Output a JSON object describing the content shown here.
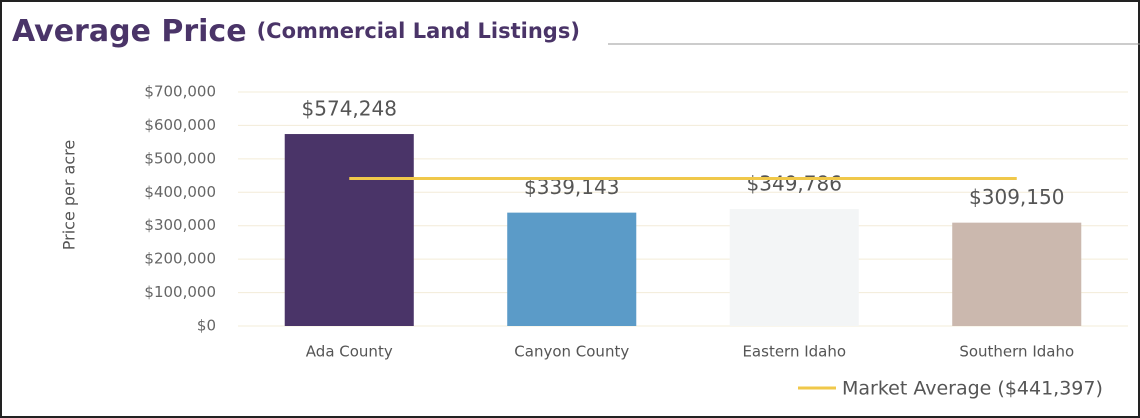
{
  "chart_data": {
    "type": "bar",
    "title": "Average Price",
    "subtitle": "(Commercial Land Listings)",
    "y_label": "Price per acre",
    "categories": [
      "Ada County",
      "Canyon County",
      "Eastern Idaho",
      "Southern Idaho"
    ],
    "values": [
      574248,
      339143,
      349786,
      309150
    ],
    "value_labels": [
      "$574,248",
      "$339,143",
      "$349,786",
      "$309,150"
    ],
    "colors": [
      "#4a3468",
      "#5b9bc8",
      "#f3f5f6",
      "#cbb8ae"
    ],
    "reference_line": {
      "name": "Market Average ($441,397)",
      "value": 441397,
      "color": "#f0c84a"
    },
    "ylim": [
      0,
      700000
    ],
    "yticks": [
      {
        "value": 0,
        "label": "$0"
      },
      {
        "value": 100000,
        "label": "$100,000"
      },
      {
        "value": 200000,
        "label": "$200,000"
      },
      {
        "value": 300000,
        "label": "$300,000"
      },
      {
        "value": 400000,
        "label": "$400,000"
      },
      {
        "value": 500000,
        "label": "$500,000"
      },
      {
        "value": 600000,
        "label": "$600,000"
      },
      {
        "value": 700000,
        "label": "$700,000"
      }
    ],
    "grid": true
  }
}
